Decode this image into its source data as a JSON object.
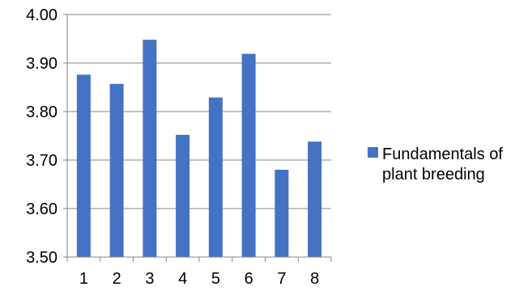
{
  "chart_data": {
    "type": "bar",
    "categories": [
      "1",
      "2",
      "3",
      "4",
      "5",
      "6",
      "7",
      "8"
    ],
    "series": [
      {
        "name": "Fundamentals of plant breeding",
        "legend_lines": [
          "Fundamentals of",
          "plant breeding"
        ],
        "color": "#4472C4",
        "values": [
          3.876,
          3.857,
          3.948,
          3.752,
          3.829,
          3.919,
          3.68,
          3.738
        ]
      }
    ],
    "ylim": [
      3.5,
      4.0
    ],
    "yticks": [
      "3.50",
      "3.60",
      "3.70",
      "3.80",
      "3.90",
      "4.00"
    ],
    "grid": true,
    "legend_position": "right",
    "title": "",
    "xlabel": "",
    "ylabel": ""
  }
}
